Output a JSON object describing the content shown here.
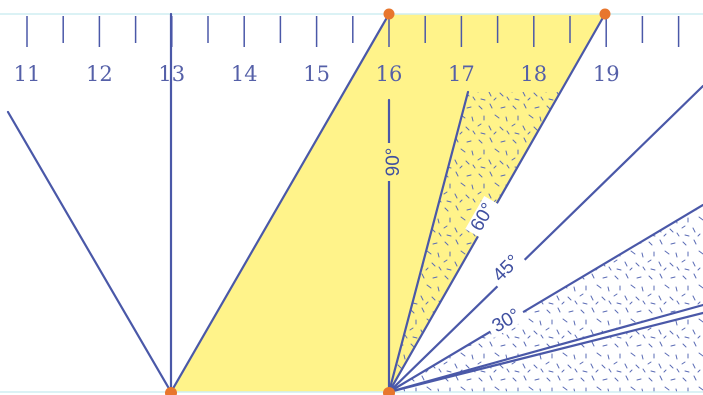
{
  "ruler": {
    "tick_labels": [
      "11",
      "12",
      "13",
      "14",
      "15",
      "16",
      "17",
      "18",
      "19"
    ]
  },
  "angles": {
    "a90": "90°",
    "a60": "60°",
    "a45": "45°",
    "a30": "30°"
  },
  "colors": {
    "line": "#4a58a8",
    "highlight": "#fff38a",
    "point": "#e8762d",
    "edge": "#cfeef2",
    "speckle": "#5a6bb5"
  }
}
